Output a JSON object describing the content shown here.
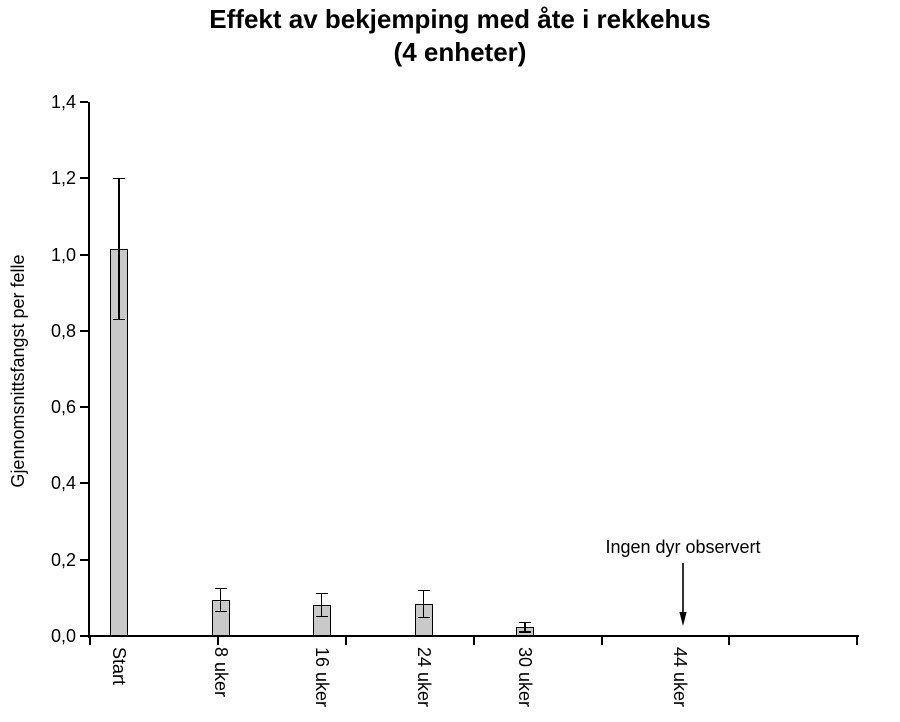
{
  "chart_data": {
    "type": "bar",
    "title_line1": "Effekt av bekjemping med åte i rekkehus",
    "title_line2": "(4 enheter)",
    "ylabel": "Gjennomsnittsfangst per felle",
    "xlabel": "",
    "categories": [
      "Start",
      "8 uker",
      "16 uker",
      "24 uker",
      "30 uker",
      "44 uker"
    ],
    "values": [
      1.015,
      0.094,
      0.081,
      0.084,
      0.023,
      0
    ],
    "errors": [
      0.185,
      0.03,
      0.03,
      0.035,
      0.012,
      0
    ],
    "ylim": [
      0,
      1.4
    ],
    "ytick_step": 0.2,
    "ytick_labels": [
      "0,0",
      "0,2",
      "0,4",
      "0,6",
      "0,8",
      "1,0",
      "1,2",
      "1,4"
    ],
    "decimal_separator": ",",
    "grid": "off",
    "legend": "none",
    "annotation": {
      "text": "Ingen dyr observert",
      "target_category": "44 uker"
    },
    "bar_color": "#c9c9c9",
    "bar_edge_color": "#000000",
    "axis_color": "#000000",
    "text_color": "#000000"
  }
}
